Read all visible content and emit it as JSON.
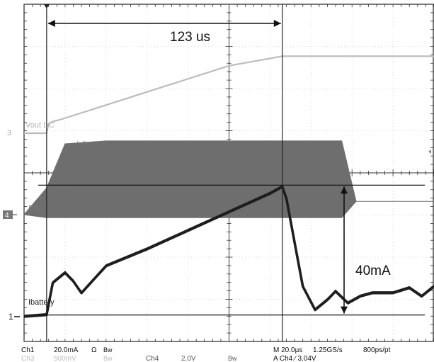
{
  "chart_data": {
    "type": "line",
    "title": "",
    "annotations": {
      "rise_time": "123 us",
      "current_delta": "40mA"
    },
    "channel_labels": {
      "vout": "Vout DC",
      "sw": "SW",
      "ibattery": "Ibattery"
    },
    "ground_markers": {
      "ch3": "3",
      "ch4": "4",
      "ch1": "1"
    },
    "settings": {
      "row1": {
        "ch1": "Ch1",
        "ch1_scale": "20.0mA",
        "ch1_coupling": "Ω",
        "ch1_bw": "Bw",
        "timebase": "M 20.0µs",
        "sample_rate": "1.25GS/s",
        "resolution": "800ps/pt"
      },
      "row2": {
        "ch3": "Ch3",
        "ch3_scale": "500mV",
        "ch3_bw": "Bw",
        "ch4": "Ch4",
        "ch4_scale": "2.0V",
        "ch4_bw": "Bw",
        "trigger": "A  Ch4  ∕  3.04V"
      }
    },
    "grid": true,
    "divisions": {
      "x": 10,
      "y": 8
    },
    "x_unit": "µs",
    "x_per_div": 20,
    "series": [
      {
        "key": "vout",
        "color": "#bcbcbc",
        "x": [
          0,
          11,
          12,
          14,
          18,
          100,
          126,
          200
        ],
        "y": [
          -0.1,
          -0.1,
          0.35,
          0.45,
          0.55,
          3.1,
          3.55,
          3.55
        ]
      },
      {
        "key": "sw",
        "color": "#6e6e6e",
        "x": [
          0,
          11,
          20,
          40,
          80,
          120,
          155,
          162,
          200
        ],
        "y_low": [
          0,
          -0.1,
          -0.1,
          -0.1,
          -0.1,
          -0.1,
          -0.1,
          0.45,
          0.45
        ],
        "y_high": [
          0,
          0.9,
          2.4,
          2.5,
          2.5,
          2.5,
          2.5,
          0.45,
          0.45
        ]
      },
      {
        "key": "ibattery",
        "color": "#1e1e1e",
        "x": [
          0,
          11,
          14,
          20,
          24,
          28,
          34,
          40,
          60,
          80,
          100,
          120,
          126,
          128,
          132,
          136,
          142,
          148,
          152,
          158,
          164,
          170,
          180,
          188,
          194,
          200
        ],
        "y": [
          0,
          0.05,
          1.0,
          1.3,
          1.05,
          0.7,
          1.1,
          1.5,
          2.0,
          2.55,
          3.1,
          3.65,
          3.85,
          3.5,
          2.2,
          0.9,
          0.2,
          0.5,
          0.75,
          0.4,
          0.6,
          0.7,
          0.7,
          0.85,
          0.6,
          0.9
        ]
      }
    ],
    "markers": {
      "cursor_x": [
        11,
        126
      ],
      "hline_top_div": 3.9,
      "hline_bottom_div": 0.05
    }
  }
}
